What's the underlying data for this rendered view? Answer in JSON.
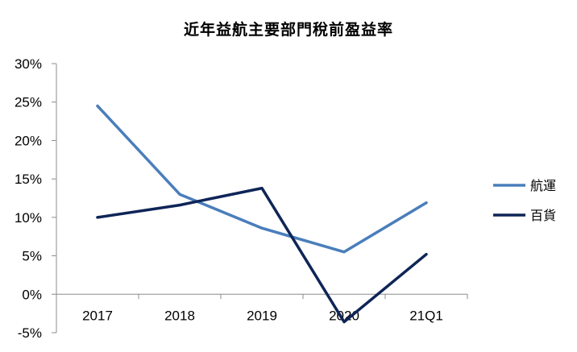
{
  "chart_data": {
    "type": "line",
    "title": "近年益航主要部門稅前盈益率",
    "xlabel": "",
    "ylabel": "",
    "categories": [
      "2017",
      "2018",
      "2019",
      "2020",
      "21Q1"
    ],
    "y_ticks": [
      "30%",
      "25%",
      "20%",
      "15%",
      "10%",
      "5%",
      "0%",
      "-5%"
    ],
    "ylim": [
      -5,
      30
    ],
    "grid": false,
    "legend_position": "right",
    "series": [
      {
        "name": "航運",
        "color": "#4a7ebb",
        "values": [
          24.5,
          13.0,
          8.6,
          5.5,
          11.9
        ]
      },
      {
        "name": "百貨",
        "color": "#0e2557",
        "values": [
          10.0,
          11.6,
          13.8,
          -3.6,
          5.2
        ]
      }
    ]
  }
}
